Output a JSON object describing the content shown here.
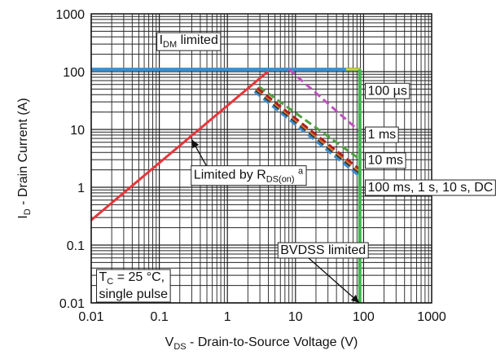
{
  "chart_data": {
    "type": "line",
    "title": "",
    "xlabel": "V_DS - Drain-to-Source Voltage (V)",
    "ylabel": "I_D - Drain Current (A)",
    "x_scale": "log",
    "y_scale": "log",
    "xlim": [
      0.01,
      1000
    ],
    "ylim": [
      0.01,
      1000
    ],
    "grid": true,
    "x_ticks": [
      {
        "value": 0.01,
        "label": "0.01"
      },
      {
        "value": 0.1,
        "label": "0.1"
      },
      {
        "value": 1,
        "label": "1"
      },
      {
        "value": 10,
        "label": "10"
      },
      {
        "value": 100,
        "label": "100"
      },
      {
        "value": 1000,
        "label": "1000"
      }
    ],
    "y_ticks": [
      {
        "value": 0.01,
        "label": "0.01"
      },
      {
        "value": 0.1,
        "label": "0.1"
      },
      {
        "value": 1,
        "label": "1"
      },
      {
        "value": 10,
        "label": "10"
      },
      {
        "value": 100,
        "label": "100"
      },
      {
        "value": 1000,
        "label": "1000"
      }
    ],
    "series": [
      {
        "color": "#e8353a",
        "dashed": false,
        "width": 3,
        "x": [
          0.01,
          4.3
        ],
        "y": [
          0.27,
          110
        ]
      },
      {
        "color": "#3a8fd0",
        "dashed": false,
        "width": 4,
        "x": [
          0.01,
          90
        ],
        "y": [
          110,
          110
        ]
      },
      {
        "color": "#d4d60a",
        "dashed": false,
        "width": 3,
        "x": [
          55,
          90
        ],
        "y": [
          110,
          110
        ]
      },
      {
        "color": "#c050c0",
        "dashed": true,
        "width": 3,
        "x": [
          8,
          90
        ],
        "y": [
          110,
          9
        ]
      },
      {
        "color": "#4ea040",
        "dashed": true,
        "width": 3,
        "x": [
          2.9,
          90
        ],
        "y": [
          55,
          3
        ]
      },
      {
        "color": "#3a8fd0",
        "dashed": true,
        "width": 3,
        "x": [
          2.5,
          90
        ],
        "y": [
          45,
          1.5
        ]
      },
      {
        "color": "#3a3a3a",
        "dashed": true,
        "width": 3,
        "x": [
          2.6,
          90
        ],
        "y": [
          48,
          1.7
        ]
      },
      {
        "color": "#e08030",
        "dashed": true,
        "width": 3,
        "x": [
          2.7,
          90
        ],
        "y": [
          50,
          1.85
        ]
      },
      {
        "color": "#b02020",
        "dashed": true,
        "width": 3,
        "x": [
          2.75,
          90
        ],
        "y": [
          52,
          2.0
        ]
      },
      {
        "color": "#3fb54a",
        "dashed": false,
        "width": 4,
        "x": [
          88,
          88
        ],
        "y": [
          0.01,
          110
        ]
      }
    ],
    "annotations": [
      {
        "main": "I",
        "sub": "DM",
        "rest": " limited",
        "x": 0.1,
        "y": 300
      },
      {
        "main": "100 µs",
        "x": 115,
        "y": 40
      },
      {
        "main": "1 ms",
        "x": 115,
        "y": 7
      },
      {
        "main": "10 ms",
        "x": 115,
        "y": 2.5
      },
      {
        "main": "100 ms, 1 s, 10 s, DC",
        "x": 115,
        "y": 0.85
      },
      {
        "main": "Limited by R",
        "sub": "DS(on)",
        "rest": " a",
        "x": 0.32,
        "y": 1.4,
        "arrow_to": [
          0.3,
          6.7
        ]
      },
      {
        "main": "BVDSS limited",
        "x": 6,
        "y": 0.07,
        "arrow_to": [
          87,
          0.01
        ]
      },
      {
        "main": "T",
        "sub": "C",
        "rest": " = 25 °C,",
        "line2": "single pulse",
        "x": 0.013,
        "y": 0.024
      }
    ],
    "legend": "none"
  }
}
